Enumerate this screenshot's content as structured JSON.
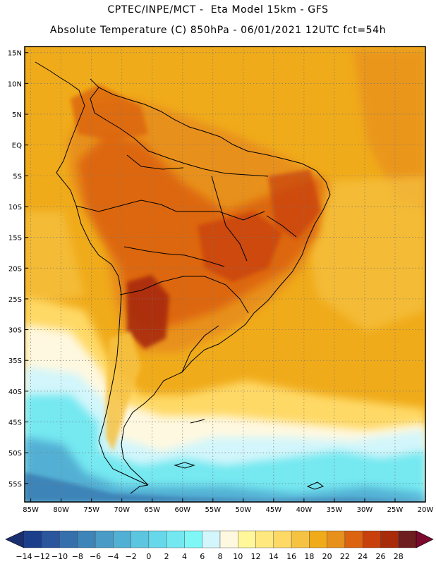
{
  "header": {
    "line1": "CPTEC/INPE/MCT -  Eta Model 15km - GFS",
    "line2": "Absolute Temperature (C) 850hPa - 06/01/2021 12UTC fct=54h"
  },
  "axes": {
    "lat_labels": [
      "15N",
      "10N",
      "5N",
      "EQ",
      "5S",
      "10S",
      "15S",
      "20S",
      "25S",
      "30S",
      "35S",
      "40S",
      "45S",
      "50S",
      "55S"
    ],
    "lat_values": [
      15,
      10,
      5,
      0,
      -5,
      -10,
      -15,
      -20,
      -25,
      -30,
      -35,
      -40,
      -45,
      -50,
      -55
    ],
    "lon_labels": [
      "85W",
      "80W",
      "75W",
      "70W",
      "65W",
      "60W",
      "55W",
      "50W",
      "45W",
      "40W",
      "35W",
      "30W",
      "25W",
      "20W"
    ],
    "lon_values": [
      -85,
      -80,
      -75,
      -70,
      -65,
      -60,
      -55,
      -50,
      -45,
      -40,
      -35,
      -30,
      -25,
      -20
    ],
    "lon_range": [
      -86,
      -20
    ],
    "lat_range": [
      -58,
      16
    ]
  },
  "colorbar": {
    "labels": [
      "-14",
      "-12",
      "-10",
      "-8",
      "-6",
      "-4",
      "-2",
      "0",
      "2",
      "4",
      "6",
      "8",
      "10",
      "12",
      "14",
      "16",
      "18",
      "20",
      "22",
      "24",
      "26",
      "28"
    ],
    "colors": [
      "#1c3f8c",
      "#2a569e",
      "#3570ad",
      "#3d84b8",
      "#4a9bc6",
      "#52b0d4",
      "#5cc6e0",
      "#66d8ea",
      "#74e8f0",
      "#7ff7f7",
      "#d2f6fb",
      "#fff8e0",
      "#fff79a",
      "#ffe97f",
      "#ffd966",
      "#f6c242",
      "#f0ab1a",
      "#e8901c",
      "#dc6410",
      "#c8410c",
      "#a82c0a",
      "#6e1e1e"
    ],
    "low_arrow_color": "#1a2f70",
    "high_arrow_color": "#7a0a2e"
  },
  "map": {
    "background_color": "#f0ab1a",
    "frame_color": "#000000"
  }
}
